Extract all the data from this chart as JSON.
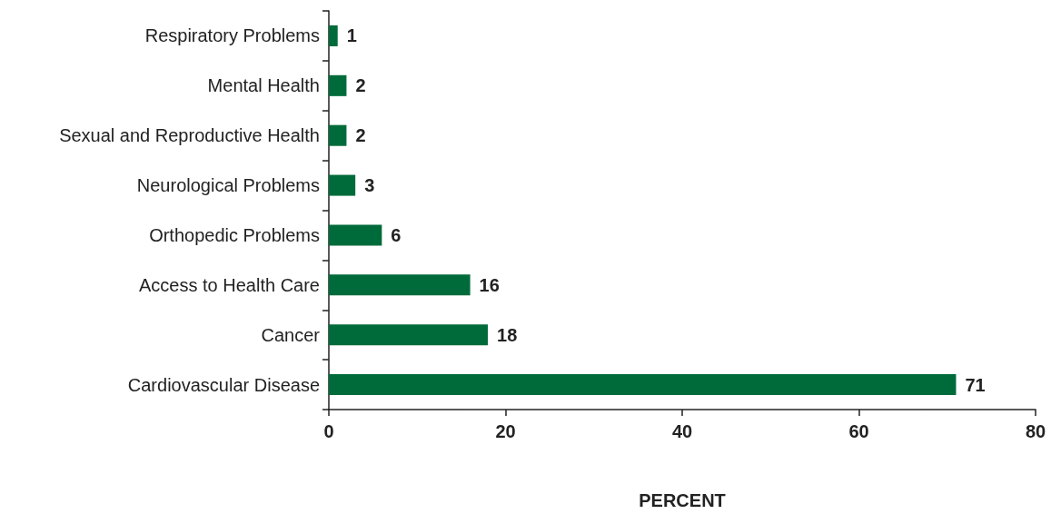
{
  "chart_data": {
    "type": "bar",
    "orientation": "horizontal",
    "xlabel": "PERCENT",
    "categories": [
      "Respiratory Problems",
      "Mental Health",
      "Sexual and Reproductive Health",
      "Neurological Problems",
      "Orthopedic Problems",
      "Access to Health Care",
      "Cancer",
      "Cardiovascular Disease"
    ],
    "values": [
      1,
      2,
      2,
      3,
      6,
      16,
      18,
      71
    ],
    "color": "#006b3a",
    "xlim": [
      0,
      80
    ],
    "xticks": [
      0,
      20,
      40,
      60,
      80
    ],
    "grid": false,
    "data_labels": true
  }
}
